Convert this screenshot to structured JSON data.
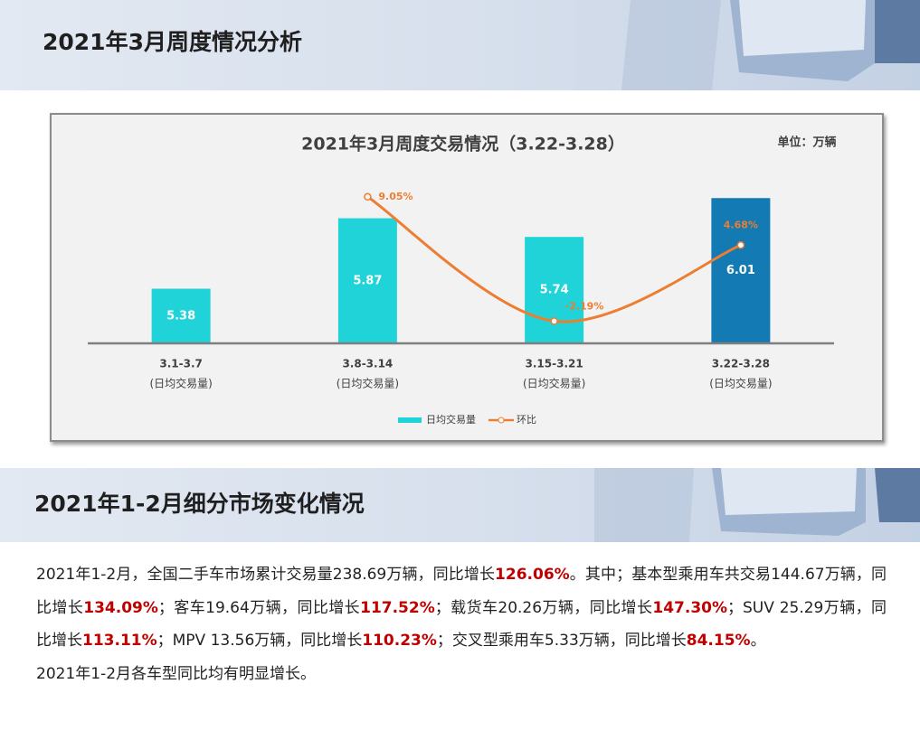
{
  "header": {
    "title": "2021年3月周度情况分析"
  },
  "chart_data": {
    "type": "combo",
    "title": "2021年3月周度交易情况（3.22-3.28）",
    "unit": "单位：万辆",
    "categories": [
      "3.1-3.7",
      "3.8-3.14",
      "3.15-3.21",
      "3.22-3.28"
    ],
    "category_notes": [
      "(日均交易量)",
      "(日均交易量)",
      "(日均交易量)",
      "(日均交易量)"
    ],
    "series": [
      {
        "name": "日均交易量",
        "type": "bar",
        "color": "#1fd3d9",
        "colors": [
          "#1fd3d9",
          "#1fd3d9",
          "#1fd3d9",
          "#137ab4"
        ],
        "values": [
          5.38,
          5.87,
          5.74,
          6.01
        ]
      },
      {
        "name": "环比",
        "type": "line",
        "axis": "y2",
        "color": "#ed7d31",
        "values": [
          null,
          9.05,
          -2.19,
          4.68
        ],
        "value_labels": [
          null,
          "9.05%",
          "-2.19%",
          "4.68%"
        ]
      }
    ],
    "ylim": [
      5,
      6.2
    ],
    "y2lim": [
      -4.2,
      11.4
    ],
    "grid": false,
    "legend": "bottom"
  },
  "section": {
    "title": "2021年1-2月细分市场变化情况",
    "paragraphs": [
      [
        {
          "text": "2021年1-2月，全国二手车市场累计交易量238.69万辆，同比增长",
          "bold": false
        },
        {
          "text": "126.06%",
          "bold": true
        },
        {
          "text": "。其中；基本型乘用车共交易144.67万辆，同比增长",
          "bold": false
        },
        {
          "text": "134.09%",
          "bold": true
        },
        {
          "text": "；客车19.64万辆，同比增长",
          "bold": false
        },
        {
          "text": "117.52%",
          "bold": true
        },
        {
          "text": "；载货车20.26万辆，同比增长",
          "bold": false
        },
        {
          "text": "147.30%",
          "bold": true
        },
        {
          "text": "；SUV 25.29万辆，同比增长",
          "bold": false
        },
        {
          "text": "113.11%",
          "bold": true
        },
        {
          "text": "；MPV 13.56万辆，同比增长",
          "bold": false
        },
        {
          "text": "110.23%",
          "bold": true
        },
        {
          "text": "；交叉型乘用车5.33万辆，同比增长",
          "bold": false
        },
        {
          "text": "84.15%",
          "bold": true
        },
        {
          "text": "。",
          "bold": false
        }
      ],
      [
        {
          "text": "2021年1-2月各车型同比均有明显增长。",
          "bold": false
        }
      ]
    ]
  }
}
